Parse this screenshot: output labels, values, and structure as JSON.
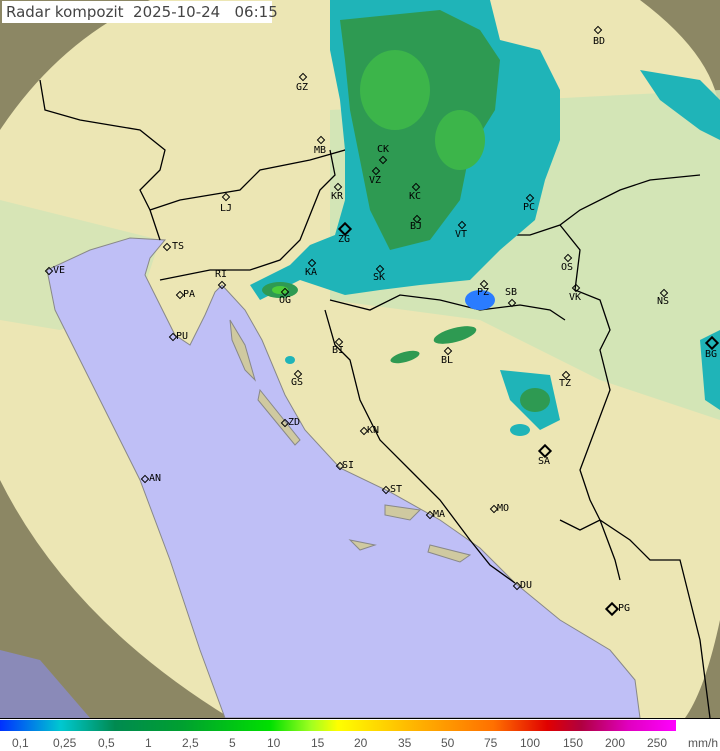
{
  "title": "Radar kompozit  2025-10-24   06:15",
  "colors": {
    "sea": "#bfbff6",
    "land": "#ece6b4",
    "lowland": "#cfe4b6",
    "out_of_range": "#8c8764",
    "rain_light": "#1fb4b8",
    "rain_medium": "#2e9a52",
    "rain_heavy": "#4ccc3a",
    "drizzle": "#2a7cff"
  },
  "cities": [
    "BD",
    "GZ",
    "MB",
    "CK",
    "VZ",
    "KR",
    "KC",
    "LJ",
    "ZG",
    "BJ",
    "VT",
    "PC",
    "TS",
    "VE",
    "RI",
    "KA",
    "SK",
    "OS",
    "PA",
    "OG",
    "PZ",
    "SB",
    "VK",
    "NS",
    "PU",
    "BI",
    "BL",
    "GS",
    "TZ",
    "BG",
    "ZD",
    "KN",
    "AN",
    "SI",
    "SA",
    "ST",
    "MA",
    "MO",
    "DU",
    "PG"
  ],
  "legend": {
    "unit": "mm/h",
    "ticks": [
      "0,1",
      "0,25",
      "0,5",
      "1",
      "2,5",
      "5",
      "10",
      "15",
      "20",
      "35",
      "50",
      "75",
      "100",
      "150",
      "200",
      "250"
    ]
  }
}
